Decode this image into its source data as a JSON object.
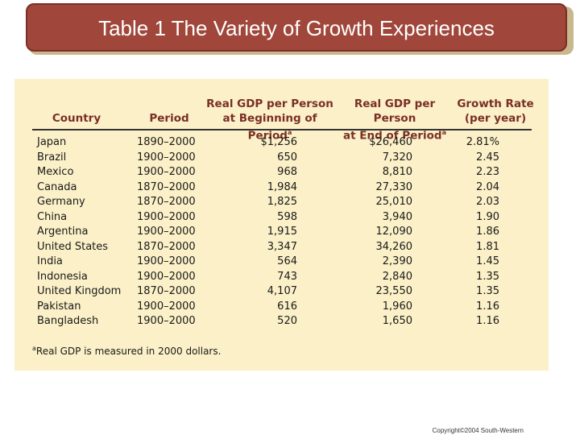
{
  "title": "Table 1 The Variety of Growth Experiences",
  "table": {
    "headers": {
      "country": "Country",
      "period": "Period",
      "begin_line1": "Real GDP per Person",
      "begin_line2": "at Beginning of Period",
      "end_line1": "Real GDP per Person",
      "end_line2": "at End of Period",
      "growth_line1": "Growth Rate",
      "growth_line2": "(per year)",
      "superscript": "a"
    },
    "rows": [
      {
        "country": "Japan",
        "period": "1890–2000",
        "begin": "$1,256",
        "end": "$26,460",
        "growth": "2.81%"
      },
      {
        "country": "Brazil",
        "period": "1900–2000",
        "begin": "650",
        "end": "7,320",
        "growth": "2.45"
      },
      {
        "country": "Mexico",
        "period": "1900–2000",
        "begin": "968",
        "end": "8,810",
        "growth": "2.23"
      },
      {
        "country": "Canada",
        "period": "1870–2000",
        "begin": "1,984",
        "end": "27,330",
        "growth": "2.04"
      },
      {
        "country": "Germany",
        "period": "1870–2000",
        "begin": "1,825",
        "end": "25,010",
        "growth": "2.03"
      },
      {
        "country": "China",
        "period": "1900–2000",
        "begin": "598",
        "end": "3,940",
        "growth": "1.90"
      },
      {
        "country": "Argentina",
        "period": "1900–2000",
        "begin": "1,915",
        "end": "12,090",
        "growth": "1.86"
      },
      {
        "country": "United States",
        "period": "1870–2000",
        "begin": "3,347",
        "end": "34,260",
        "growth": "1.81"
      },
      {
        "country": "India",
        "period": "1900–2000",
        "begin": "564",
        "end": "2,390",
        "growth": "1.45"
      },
      {
        "country": "Indonesia",
        "period": "1900–2000",
        "begin": "743",
        "end": "2,840",
        "growth": "1.35"
      },
      {
        "country": "United Kingdom",
        "period": "1870–2000",
        "begin": "4,107",
        "end": "23,550",
        "growth": "1.35"
      },
      {
        "country": "Pakistan",
        "period": "1900–2000",
        "begin": "616",
        "end": "1,960",
        "growth": "1.16"
      },
      {
        "country": "Bangladesh",
        "period": "1900–2000",
        "begin": "520",
        "end": "1,650",
        "growth": "1.16"
      }
    ],
    "footnote_mark": "a",
    "footnote": "Real GDP is measured in 2000 dollars."
  },
  "copyright": "Copyright©2004 South-Western",
  "colors": {
    "title_bar": "#a0463a",
    "header_text": "#7a2f26",
    "panel": "#fbf0c7"
  }
}
